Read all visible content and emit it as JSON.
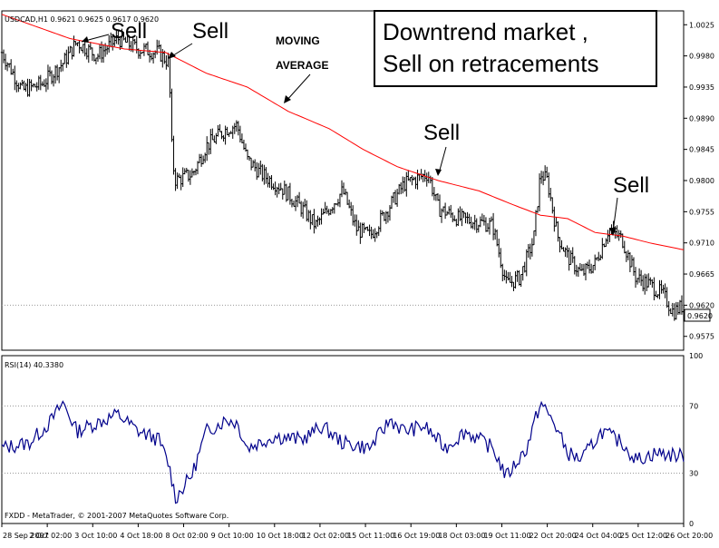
{
  "chart_data": [
    {
      "type": "candlestick",
      "symbol_label": "USDCAD,H1 0.9621 0.9625 0.9617 0.9620",
      "ylim": [
        0.9555,
        1.0045
      ],
      "yticks": [
        "1.0025",
        "0.9980",
        "0.9935",
        "0.9890",
        "0.9845",
        "0.9800",
        "0.9755",
        "0.9710",
        "0.9665",
        "0.9620",
        "0.9575"
      ],
      "current_price": "0.9620",
      "price_path": [
        [
          0,
          0.9985
        ],
        [
          0.03,
          0.993
        ],
        [
          0.06,
          0.994
        ],
        [
          0.09,
          0.997
        ],
        [
          0.11,
          1.0
        ],
        [
          0.14,
          0.998
        ],
        [
          0.17,
          1.0005
        ],
        [
          0.2,
          0.999
        ],
        [
          0.23,
          0.9985
        ],
        [
          0.245,
          0.997
        ],
        [
          0.25,
          0.983
        ],
        [
          0.255,
          0.98
        ],
        [
          0.28,
          0.981
        ],
        [
          0.3,
          0.985
        ],
        [
          0.33,
          0.9875
        ],
        [
          0.345,
          0.988
        ],
        [
          0.36,
          0.983
        ],
        [
          0.38,
          0.981
        ],
        [
          0.41,
          0.979
        ],
        [
          0.44,
          0.976
        ],
        [
          0.46,
          0.9735
        ],
        [
          0.48,
          0.976
        ],
        [
          0.5,
          0.9785
        ],
        [
          0.52,
          0.973
        ],
        [
          0.54,
          0.972
        ],
        [
          0.56,
          0.975
        ],
        [
          0.59,
          0.9795
        ],
        [
          0.625,
          0.981
        ],
        [
          0.64,
          0.976
        ],
        [
          0.67,
          0.9745
        ],
        [
          0.7,
          0.974
        ],
        [
          0.72,
          0.9735
        ],
        [
          0.74,
          0.965
        ],
        [
          0.76,
          0.966
        ],
        [
          0.78,
          0.9715
        ],
        [
          0.79,
          0.981
        ],
        [
          0.8,
          0.98
        ],
        [
          0.815,
          0.972
        ],
        [
          0.83,
          0.969
        ],
        [
          0.85,
          0.9665
        ],
        [
          0.87,
          0.968
        ],
        [
          0.89,
          0.973
        ],
        [
          0.91,
          0.9715
        ],
        [
          0.93,
          0.966
        ],
        [
          0.95,
          0.965
        ],
        [
          0.97,
          0.9635
        ],
        [
          0.985,
          0.961
        ],
        [
          1.0,
          0.962
        ]
      ],
      "moving_average": [
        [
          0,
          1.004
        ],
        [
          0.1,
          1.0005
        ],
        [
          0.18,
          0.999
        ],
        [
          0.24,
          0.9985
        ],
        [
          0.3,
          0.9955
        ],
        [
          0.36,
          0.9935
        ],
        [
          0.42,
          0.99
        ],
        [
          0.48,
          0.9875
        ],
        [
          0.53,
          0.9845
        ],
        [
          0.58,
          0.982
        ],
        [
          0.64,
          0.98
        ],
        [
          0.7,
          0.9785
        ],
        [
          0.75,
          0.9765
        ],
        [
          0.79,
          0.975
        ],
        [
          0.83,
          0.9745
        ],
        [
          0.87,
          0.9725
        ],
        [
          0.91,
          0.972
        ],
        [
          0.95,
          0.971
        ],
        [
          1.0,
          0.97
        ]
      ],
      "annotations": {
        "sell": "Sell",
        "moving_line1": "MOVING",
        "moving_line2": "AVERAGE",
        "title_line1": "Downtrend market ,",
        "title_line2": "Sell on retracements"
      },
      "x_tick_labels": [
        "28 Sep 2007",
        "2 Oct 02:00",
        "3 Oct 10:00",
        "4 Oct 18:00",
        "8 Oct 02:00",
        "9 Oct 10:00",
        "10 Oct 18:00",
        "12 Oct 02:00",
        "15 Oct 11:00",
        "16 Oct 19:00",
        "18 Oct 03:00",
        "19 Oct 11:00",
        "22 Oct 20:00",
        "24 Oct 04:00",
        "25 Oct 12:00",
        "26 Oct 20:00"
      ]
    },
    {
      "type": "line",
      "label": "RSI(14) 40.3380",
      "ylim": [
        0,
        100
      ],
      "yticks": [
        "100",
        "70",
        "30",
        "0"
      ],
      "levels": [
        70,
        30
      ],
      "rsi_path": [
        [
          0,
          45
        ],
        [
          0.04,
          48
        ],
        [
          0.07,
          60
        ],
        [
          0.09,
          72
        ],
        [
          0.11,
          55
        ],
        [
          0.14,
          60
        ],
        [
          0.17,
          65
        ],
        [
          0.2,
          55
        ],
        [
          0.23,
          50
        ],
        [
          0.245,
          35
        ],
        [
          0.255,
          15
        ],
        [
          0.28,
          30
        ],
        [
          0.3,
          55
        ],
        [
          0.33,
          62
        ],
        [
          0.345,
          60
        ],
        [
          0.36,
          45
        ],
        [
          0.4,
          52
        ],
        [
          0.44,
          50
        ],
        [
          0.47,
          58
        ],
        [
          0.5,
          48
        ],
        [
          0.54,
          45
        ],
        [
          0.57,
          62
        ],
        [
          0.59,
          55
        ],
        [
          0.62,
          58
        ],
        [
          0.65,
          45
        ],
        [
          0.68,
          55
        ],
        [
          0.72,
          45
        ],
        [
          0.74,
          28
        ],
        [
          0.77,
          45
        ],
        [
          0.79,
          72
        ],
        [
          0.81,
          60
        ],
        [
          0.83,
          42
        ],
        [
          0.85,
          38
        ],
        [
          0.88,
          55
        ],
        [
          0.91,
          48
        ],
        [
          0.93,
          38
        ],
        [
          0.96,
          42
        ],
        [
          1.0,
          40
        ]
      ],
      "footer": "FXDD - MetaTrader, © 2001-2007 MetaQuotes Software Corp."
    }
  ]
}
